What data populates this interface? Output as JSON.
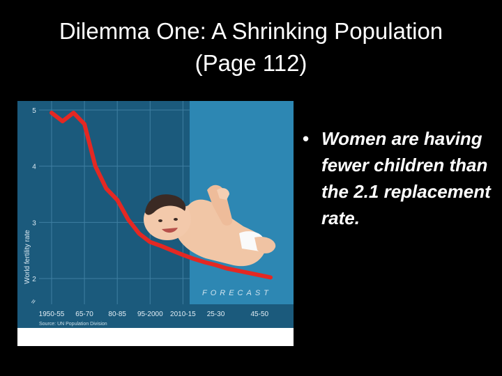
{
  "slide": {
    "title_line1": "Dilemma One: A Shrinking Population",
    "title_line2": "(Page 112)",
    "bullets": [
      "Women are having fewer children than the 2.1 replacement rate."
    ]
  },
  "chart_data": {
    "type": "line",
    "ylabel": "World fertility rate",
    "ylim": [
      2,
      5
    ],
    "yticks": [
      "5",
      "4",
      "3",
      "2"
    ],
    "categories": [
      "1950-55",
      "65-70",
      "80-85",
      "95-2000",
      "2010-15",
      "25-30",
      "45-50"
    ],
    "x": [
      1950,
      1955,
      1960,
      1965,
      1970,
      1975,
      1980,
      1985,
      1990,
      1995,
      2000,
      2005,
      2010,
      2015,
      2020,
      2025,
      2030,
      2035,
      2040,
      2045,
      2050
    ],
    "values": [
      4.95,
      4.8,
      4.95,
      4.75,
      4.0,
      3.6,
      3.4,
      3.05,
      2.8,
      2.65,
      2.58,
      2.5,
      2.42,
      2.35,
      2.29,
      2.24,
      2.18,
      2.14,
      2.1,
      2.06,
      2.02
    ],
    "forecast_label": "FORECAST",
    "source": "Source: UN Population Division",
    "colors": {
      "background": "#1b5a7c",
      "line": "#e42823",
      "forecast": "#2d87b3"
    }
  }
}
